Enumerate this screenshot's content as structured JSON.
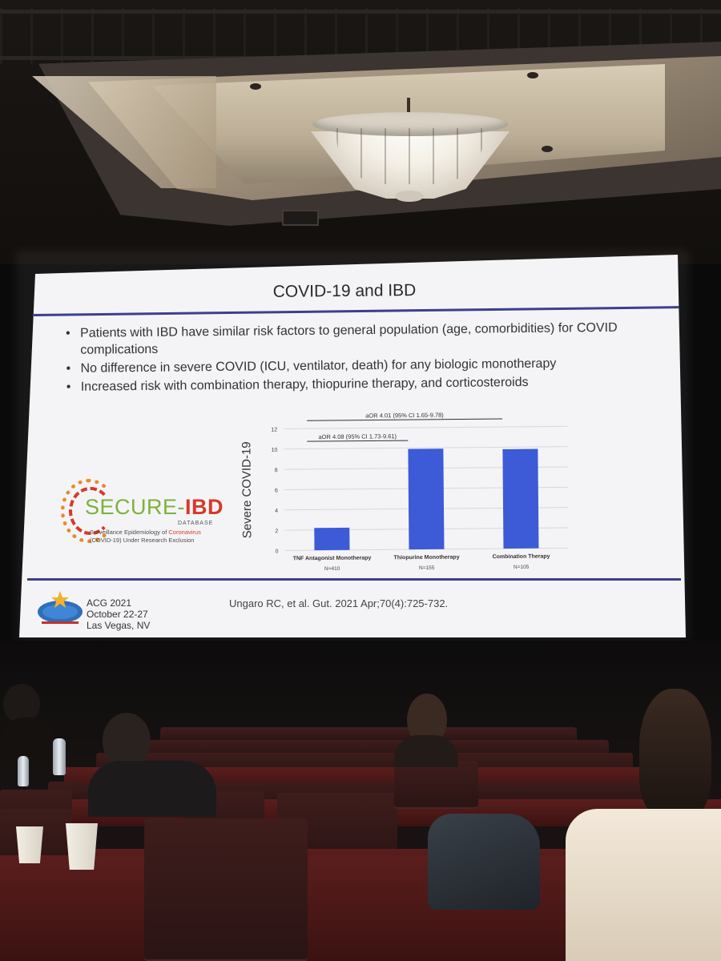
{
  "slide": {
    "title": "COVID-19 and IBD",
    "bullets": [
      "Patients with IBD have similar risk factors to general population (age, comorbidities) for COVID complications",
      "No difference  in severe COVID (ICU, ventilator, death) for any biologic monotherapy",
      "Increased risk with combination therapy, thiopurine therapy, and corticosteroids"
    ],
    "logo": {
      "secure": "SECURE-",
      "ibd": "IBD",
      "database": "DATABASE",
      "subtitle_1": "Surveillance Epidemiology of ",
      "subtitle_cv": "Coronavirus",
      "subtitle_2": "(COVID-19) Under Research Exclusion"
    },
    "footer": {
      "conference": "ACG 2021",
      "dates": "October 22-27",
      "location": "Las Vegas, NV",
      "citation": "Ungaro RC, et al. Gut. 2021 Apr;70(4):725-732."
    }
  },
  "chart_data": {
    "type": "bar",
    "ylabel": "Severe COVID-19",
    "ylim": [
      0,
      12
    ],
    "yticks": [
      0,
      2,
      4,
      6,
      8,
      10,
      12
    ],
    "categories": [
      "TNF Antagonist Monotherapy",
      "Thiopurine Monotherapy",
      "Combination Therapy"
    ],
    "sample_sizes": [
      "N=410",
      "N=155",
      "N=105"
    ],
    "values": [
      2.2,
      9.9,
      9.8
    ],
    "bar_color": "#3d5bd6",
    "annotations": [
      {
        "text": "aOR 4.08 (95% CI 1.73-9.61)",
        "from": 0,
        "to": 1
      },
      {
        "text": "aOR 4.01 (95% CI 1.65-9.78)",
        "from": 0,
        "to": 2
      }
    ]
  }
}
